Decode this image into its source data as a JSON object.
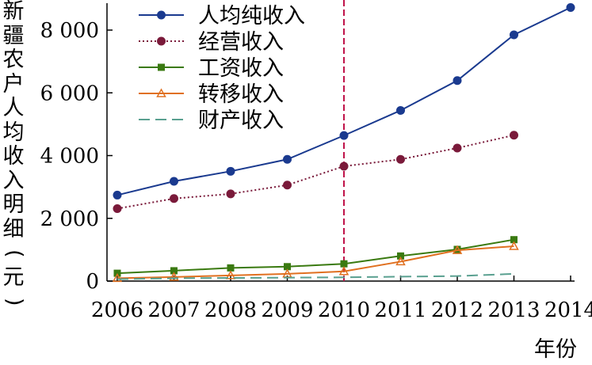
{
  "chart_data": {
    "type": "line",
    "ylabel": "新疆农户人均收入明细(元)",
    "xlabel": "年份",
    "x": [
      "2006",
      "2007",
      "2008",
      "2009",
      "2010",
      "2011",
      "2012",
      "2013",
      "2014"
    ],
    "ylim": [
      0,
      9000
    ],
    "yticks": [
      0,
      2000,
      4000,
      6000,
      8000
    ],
    "ytick_labels": [
      "0",
      "2 000",
      "4 000",
      "6 000",
      "8 000"
    ],
    "grid": false,
    "legend_position": "top-left",
    "reference_line": {
      "x": "2010",
      "style": "dashed",
      "color": "#c0134a"
    },
    "series": [
      {
        "name": "人均纯收入",
        "color": "#1a3a8f",
        "marker": "circle",
        "dash": "solid",
        "values": [
          2740,
          3180,
          3500,
          3880,
          4640,
          5440,
          6390,
          7850,
          8720
        ]
      },
      {
        "name": "经营收入",
        "color": "#7a1a3a",
        "marker": "circle",
        "dash": "dotted",
        "values": [
          2310,
          2630,
          2780,
          3060,
          3660,
          3880,
          4240,
          4650,
          null
        ]
      },
      {
        "name": "工资收入",
        "color": "#3a7a10",
        "marker": "square",
        "dash": "solid",
        "values": [
          250,
          330,
          420,
          460,
          550,
          800,
          1010,
          1320,
          null
        ]
      },
      {
        "name": "转移收入",
        "color": "#e07020",
        "marker": "triangle",
        "dash": "solid",
        "values": [
          90,
          130,
          180,
          230,
          310,
          620,
          980,
          1110,
          null
        ]
      },
      {
        "name": "财产收入",
        "color": "#5aa090",
        "marker": "none",
        "dash": "longdash",
        "values": [
          60,
          90,
          100,
          110,
          120,
          140,
          160,
          230,
          null
        ]
      }
    ]
  }
}
